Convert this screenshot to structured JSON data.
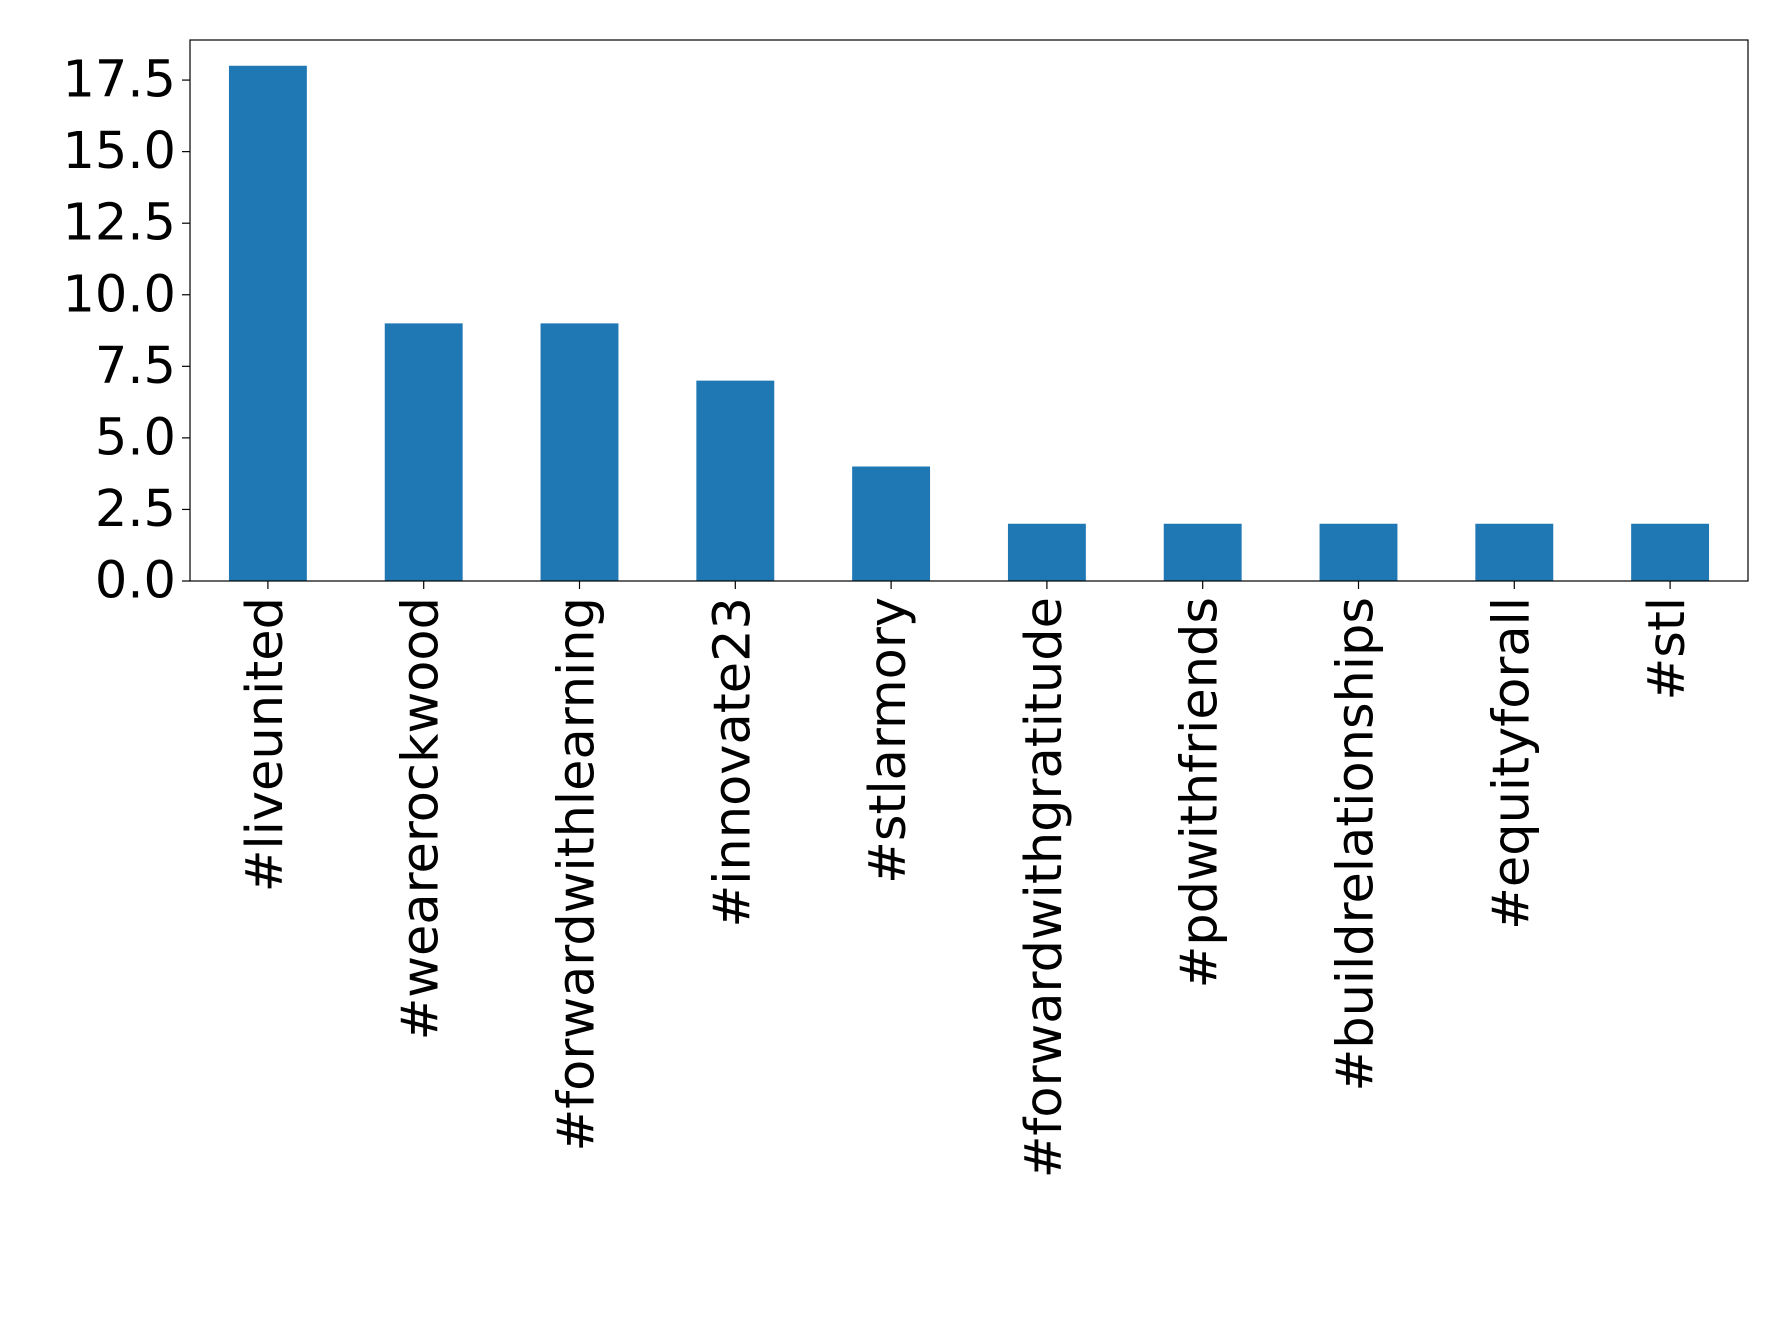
{
  "chart_data": {
    "type": "bar",
    "categories": [
      "#liveunited",
      "#wearerockwood",
      "#forwardwithlearning",
      "#innovate23",
      "#stlarmory",
      "#forwardwithgratitude",
      "#pdwithfriends",
      "#buildrelationships",
      "#equityforall",
      "#stl"
    ],
    "values": [
      18,
      9,
      9,
      7,
      4,
      2,
      2,
      2,
      2,
      2
    ],
    "color": "#1f77b4",
    "ylim": [
      0,
      18.9
    ],
    "yticks": [
      {
        "value": 0,
        "label": "0.0"
      },
      2.5,
      {
        "value": 5,
        "label": "5.0"
      },
      7.5,
      {
        "value": 10,
        "label": "10.0"
      },
      12.5,
      {
        "value": 15,
        "label": "15.0"
      },
      17.5
    ],
    "grid": false
  }
}
